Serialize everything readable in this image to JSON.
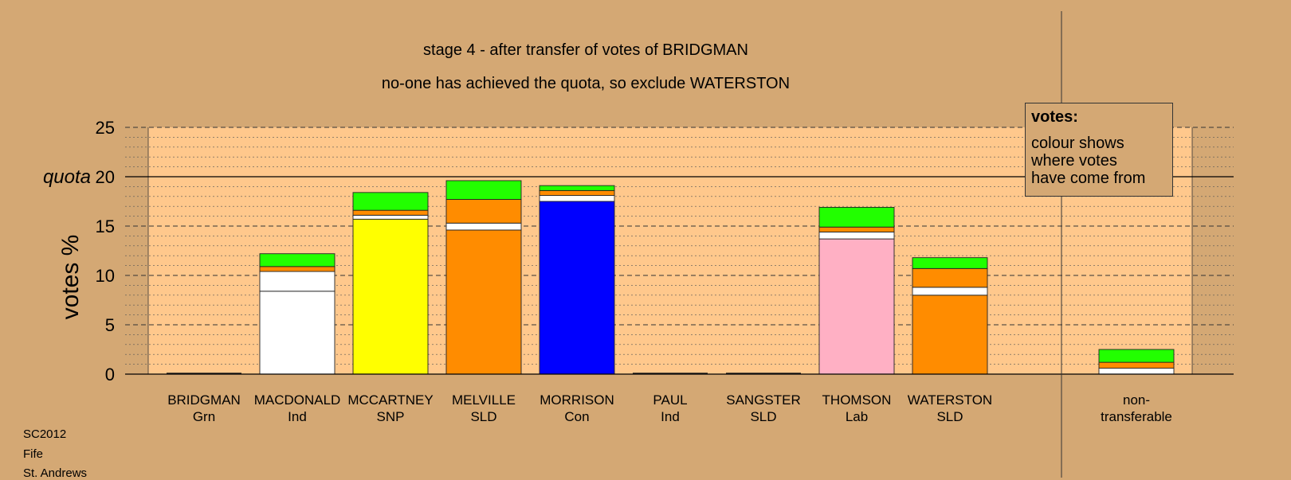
{
  "chart_data": {
    "type": "bar",
    "stacked": true,
    "title": "stage 4 - after transfer of votes of BRIDGMAN",
    "subtitle": "no-one has achieved the quota, so exclude WATERSTON",
    "ylabel": "votes %",
    "ylim": [
      0,
      25
    ],
    "yticks": [
      "0",
      "5",
      "10",
      "15",
      "20",
      "25"
    ],
    "quota": {
      "value": 20,
      "label": "quota"
    },
    "categories": [
      {
        "name": "BRIDGMAN",
        "party": "Grn"
      },
      {
        "name": "MACDONALD",
        "party": "Ind"
      },
      {
        "name": "MCCARTNEY",
        "party": "SNP"
      },
      {
        "name": "MELVILLE",
        "party": "SLD"
      },
      {
        "name": "MORRISON",
        "party": "Con"
      },
      {
        "name": "PAUL",
        "party": "Ind"
      },
      {
        "name": "SANGSTER",
        "party": "SLD"
      },
      {
        "name": "THOMSON",
        "party": "Lab"
      },
      {
        "name": "WATERSTON",
        "party": "SLD"
      },
      {
        "name": "non-\ntransferable",
        "party": ""
      }
    ],
    "bars": [
      [],
      [
        {
          "color": "#ffffff",
          "value": 8.4
        },
        {
          "color": "#ffffff",
          "value": 2.0
        },
        {
          "color": "#ff8c00",
          "value": 0.5
        },
        {
          "color": "#22ff00",
          "value": 1.3
        }
      ],
      [
        {
          "color": "#ffff00",
          "value": 15.7
        },
        {
          "color": "#ffffff",
          "value": 0.4
        },
        {
          "color": "#ff8c00",
          "value": 0.5
        },
        {
          "color": "#22ff00",
          "value": 1.8
        }
      ],
      [
        {
          "color": "#ff8c00",
          "value": 14.6
        },
        {
          "color": "#ffffff",
          "value": 0.7
        },
        {
          "color": "#ff8c00",
          "value": 2.4
        },
        {
          "color": "#22ff00",
          "value": 1.9
        }
      ],
      [
        {
          "color": "#0000ff",
          "value": 17.5
        },
        {
          "color": "#ffffff",
          "value": 0.6
        },
        {
          "color": "#ff8c00",
          "value": 0.5
        },
        {
          "color": "#22ff00",
          "value": 0.5
        }
      ],
      [],
      [],
      [
        {
          "color": "#ffb0c4",
          "value": 13.7
        },
        {
          "color": "#ffffff",
          "value": 0.7
        },
        {
          "color": "#ff8c00",
          "value": 0.5
        },
        {
          "color": "#22ff00",
          "value": 2.0
        }
      ],
      [
        {
          "color": "#ff8c00",
          "value": 8.0
        },
        {
          "color": "#ffffff",
          "value": 0.8
        },
        {
          "color": "#ff8c00",
          "value": 1.9
        },
        {
          "color": "#22ff00",
          "value": 1.1
        }
      ],
      [
        {
          "color": "#ffffff",
          "value": 0.6
        },
        {
          "color": "#ff8c00",
          "value": 0.6
        },
        {
          "color": "#22ff00",
          "value": 1.3
        }
      ]
    ],
    "legend": {
      "title": "votes:",
      "text": "colour shows\nwhere votes\nhave come from"
    },
    "grid": true
  },
  "footer": {
    "line1": "SC2012",
    "line2": "Fife",
    "line3": "St. Andrews"
  },
  "colors": {
    "background": "#d4a874",
    "plot_area": "#ffc88c",
    "white_votes": "#ffffff",
    "green_votes": "#22ff00",
    "orange_votes": "#ff8c00"
  }
}
